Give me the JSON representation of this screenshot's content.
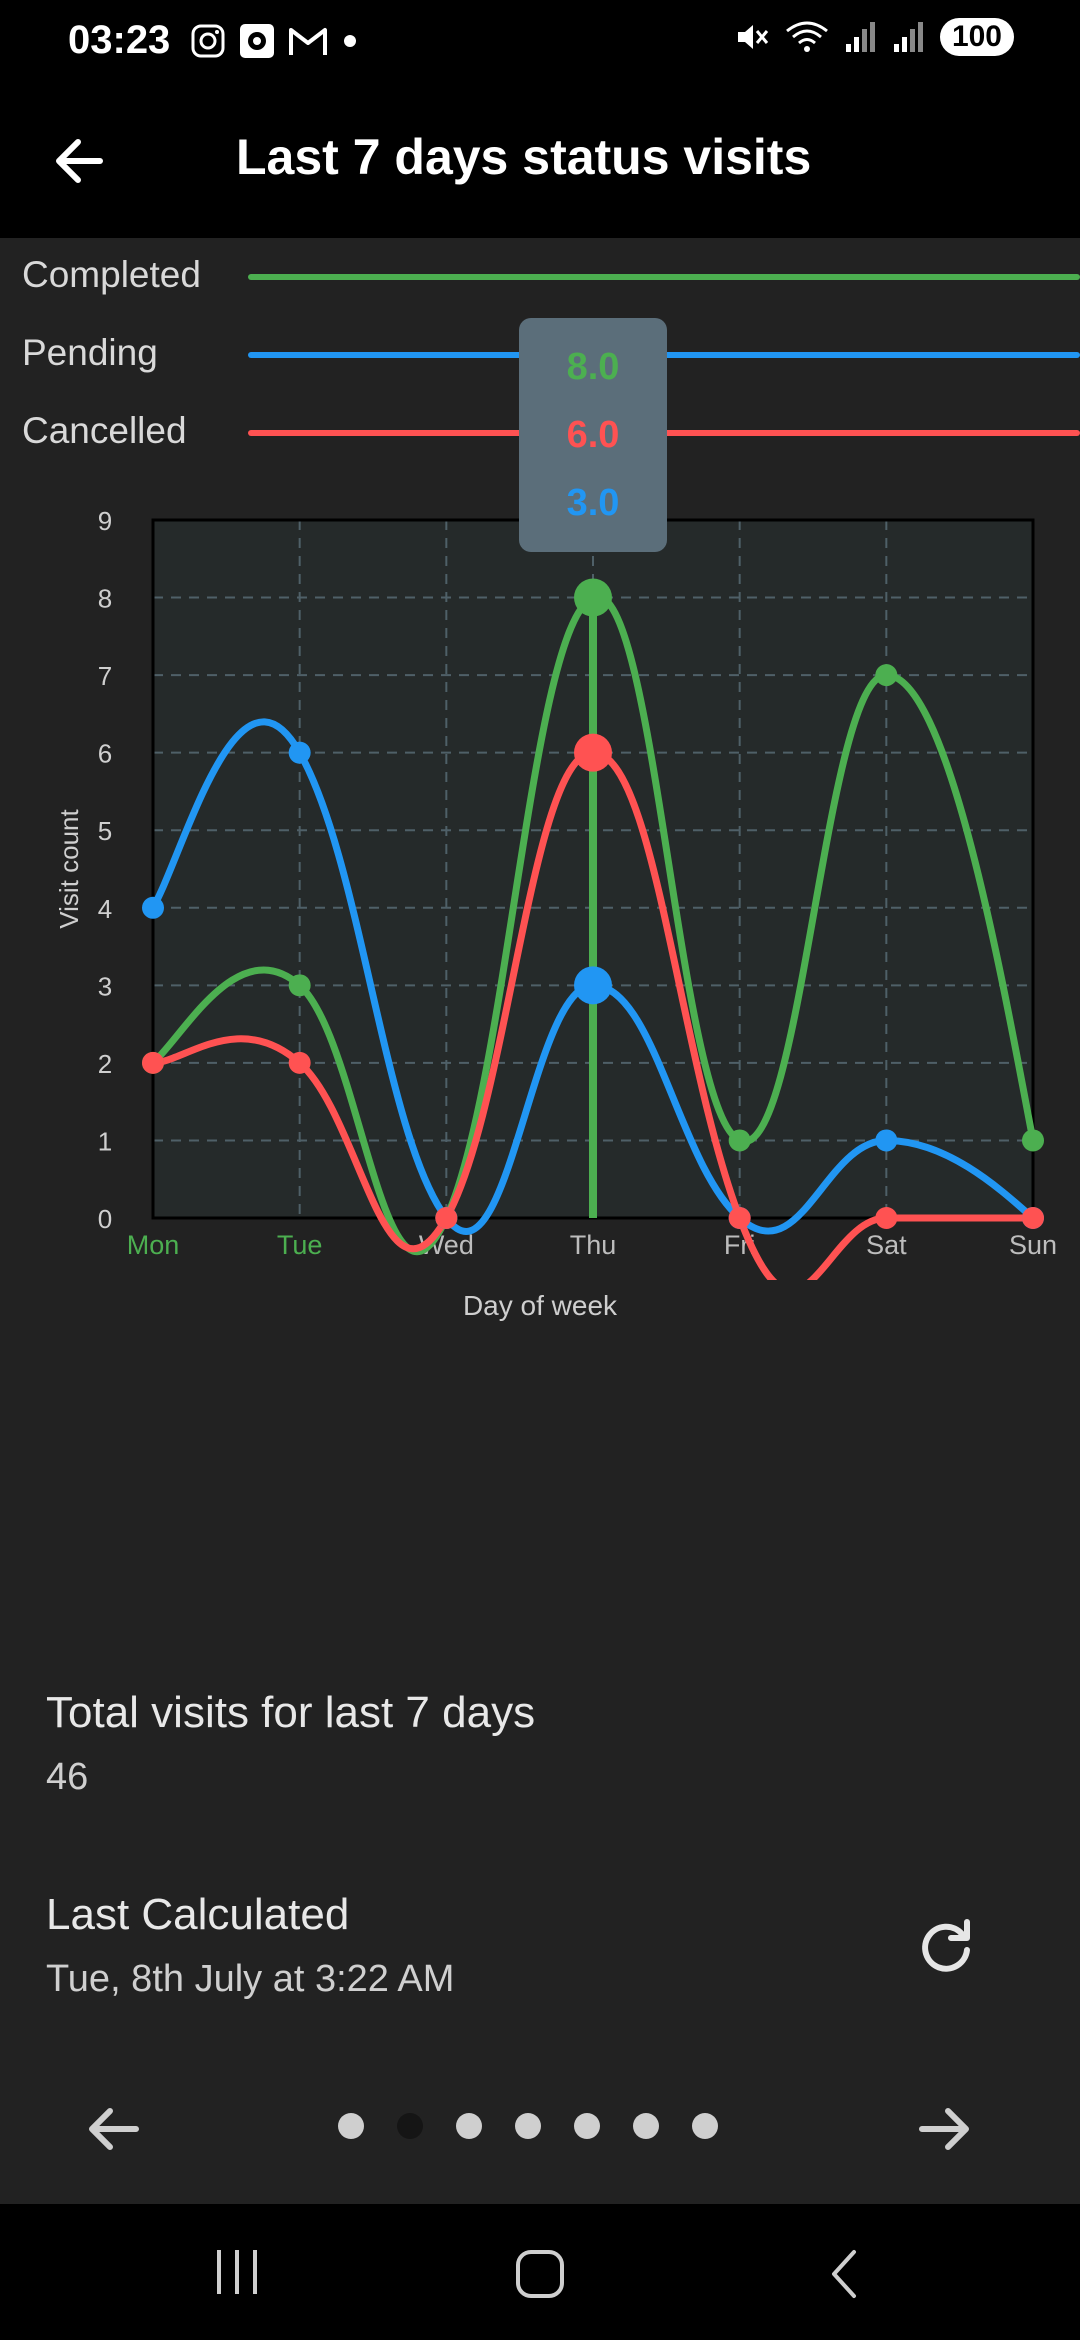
{
  "status_bar": {
    "time": "03:23",
    "battery": "100",
    "left_icons": [
      "instagram-icon",
      "screen-record-icon",
      "gmail-icon",
      "notification-dot-icon"
    ],
    "right_icons": [
      "mute-icon",
      "wifi-icon",
      "signal-icon",
      "signal-icon",
      "battery-icon"
    ]
  },
  "app_bar": {
    "title": "Last 7 days status visits"
  },
  "legend": [
    {
      "label": "Completed",
      "color": "#4caf50"
    },
    {
      "label": "Pending",
      "color": "#2196f3"
    },
    {
      "label": "Cancelled",
      "color": "#ff5252"
    }
  ],
  "tooltip": {
    "values": [
      {
        "text": "8.0",
        "color": "#4caf50"
      },
      {
        "text": "6.0",
        "color": "#ff5252"
      },
      {
        "text": "3.0",
        "color": "#2196f3"
      }
    ]
  },
  "chart_data": {
    "type": "line",
    "categories": [
      "Mon",
      "Tue",
      "Wed",
      "Thu",
      "Fri",
      "Sat",
      "Sun"
    ],
    "series": [
      {
        "name": "Completed",
        "color": "#4caf50",
        "values": [
          2,
          3,
          0,
          8,
          1,
          7,
          1
        ]
      },
      {
        "name": "Pending",
        "color": "#2196f3",
        "values": [
          4,
          6,
          0,
          3,
          0,
          1,
          0
        ]
      },
      {
        "name": "Cancelled",
        "color": "#ff5252",
        "values": [
          2,
          2,
          0,
          6,
          0,
          0,
          0
        ]
      }
    ],
    "xlabel": "Day of week",
    "ylabel": "Visit count",
    "ylim": [
      0,
      9
    ],
    "yticks": [
      0,
      1,
      2,
      3,
      4,
      5,
      6,
      7,
      8,
      9
    ],
    "highlighted_categories": [
      "Mon",
      "Tue"
    ],
    "highlight_color": "#4caf50",
    "selected_category": "Thu",
    "grid": true
  },
  "summary": {
    "total_label": "Total visits for last 7 days",
    "total_value": "46",
    "calc_label": "Last Calculated",
    "calc_value": "Tue, 8th July at 3:22 AM"
  },
  "pager": {
    "page_count": 7,
    "active_index": 1
  }
}
